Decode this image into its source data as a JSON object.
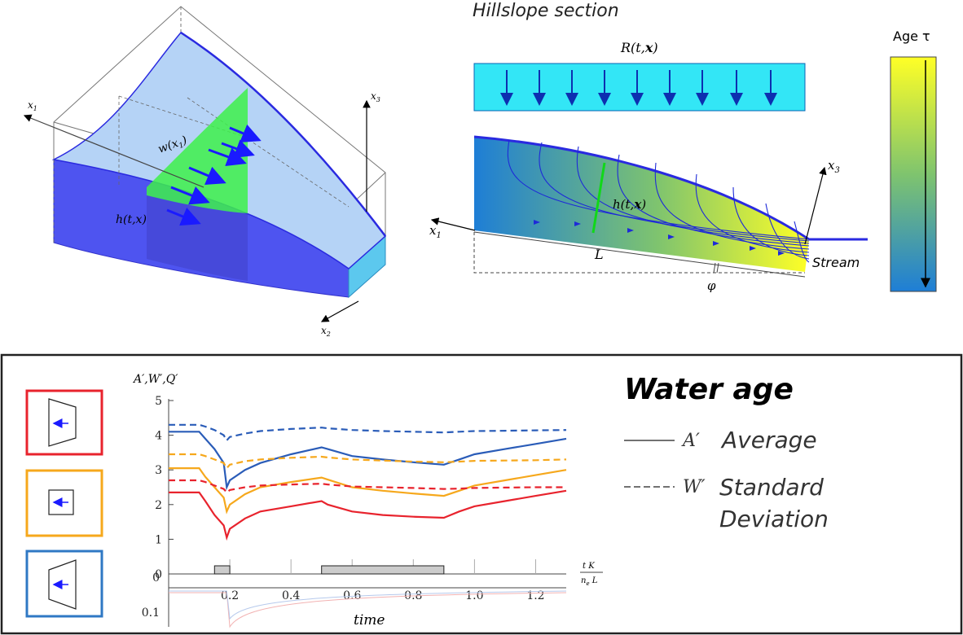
{
  "top": {
    "block3d": {
      "x1": "x",
      "x1_sub": "1",
      "x2": "x",
      "x2_sub": "2",
      "x3": "x",
      "x3_sub": "3",
      "w": "w(x",
      "w_sub": "1",
      "w_end": ")",
      "h": "h(t,x)"
    },
    "section": {
      "title": "Hillslope section",
      "recharge": "R(t,",
      "recharge_bold": "x",
      "recharge_end": ")",
      "h": "h(t,",
      "h_bold": "x",
      "h_end": ")",
      "x1": "x",
      "x1_sub": "1",
      "x3": "x",
      "x3_sub": "3",
      "L": "L",
      "phi": "φ",
      "stream": "Stream"
    },
    "colorbar": {
      "title": "Age τ",
      "top_color": "#ffff26",
      "mid_color": "#7fc46e",
      "bottom_color": "#1e7ed6"
    }
  },
  "bottom": {
    "title": "Water age",
    "ylabel": "A′,W′,Q′",
    "xlabel": "time",
    "x_scale_num": "t K",
    "x_scale_den": "n",
    "x_scale_den_sub": "e",
    "x_scale_den_end": " L",
    "legend": [
      {
        "symbol": "A′",
        "text": "Average",
        "style": "solid"
      },
      {
        "symbol": "W′",
        "text": "Standard",
        "text2": "Deviation",
        "style": "dashed"
      }
    ],
    "shape_boxes": [
      {
        "shape": "convergent",
        "color": "#e8232d"
      },
      {
        "shape": "uniform",
        "color": "#f6a81c"
      },
      {
        "shape": "divergent",
        "color": "#2f78c4"
      }
    ]
  },
  "chart_data": {
    "type": "line",
    "xlabel": "time",
    "ylabel": "A′,W′,Q′",
    "xlim": [
      0,
      1.3
    ],
    "ylim": [
      0,
      5
    ],
    "x_ticks": [
      "0.2",
      "0.4",
      "0.6",
      "0.8",
      "1.0",
      "1.2"
    ],
    "y_ticks": [
      "0",
      "1",
      "2",
      "3",
      "4",
      "5"
    ],
    "flux_tick_labels": [
      "0",
      "0.1"
    ],
    "x": [
      0.0,
      0.1,
      0.12,
      0.15,
      0.18,
      0.19,
      0.2,
      0.25,
      0.3,
      0.4,
      0.5,
      0.52,
      0.6,
      0.7,
      0.8,
      0.9,
      0.95,
      1.0,
      1.1,
      1.2,
      1.3
    ],
    "series": [
      {
        "color": "#2a5cb8",
        "style": "solid",
        "values": [
          4.1,
          4.1,
          3.9,
          3.6,
          3.2,
          2.5,
          2.7,
          3.0,
          3.2,
          3.45,
          3.65,
          3.6,
          3.4,
          3.3,
          3.22,
          3.15,
          3.3,
          3.45,
          3.6,
          3.75,
          3.9
        ]
      },
      {
        "color": "#f6a81c",
        "style": "solid",
        "values": [
          3.05,
          3.05,
          2.8,
          2.5,
          2.2,
          1.8,
          2.0,
          2.3,
          2.5,
          2.65,
          2.78,
          2.72,
          2.5,
          2.4,
          2.32,
          2.25,
          2.4,
          2.55,
          2.7,
          2.85,
          3.0
        ]
      },
      {
        "color": "#e8232d",
        "style": "solid",
        "values": [
          2.35,
          2.35,
          2.1,
          1.7,
          1.4,
          1.05,
          1.3,
          1.6,
          1.8,
          1.95,
          2.1,
          2.0,
          1.8,
          1.7,
          1.65,
          1.62,
          1.8,
          1.95,
          2.1,
          2.25,
          2.4
        ]
      },
      {
        "color": "#2a5cb8",
        "style": "dashed",
        "values": [
          4.3,
          4.3,
          4.25,
          4.15,
          4.0,
          3.85,
          3.95,
          4.05,
          4.12,
          4.18,
          4.22,
          4.2,
          4.15,
          4.12,
          4.1,
          4.08,
          4.1,
          4.12,
          4.13,
          4.14,
          4.15
        ]
      },
      {
        "color": "#f6a81c",
        "style": "dashed",
        "values": [
          3.45,
          3.45,
          3.4,
          3.3,
          3.2,
          3.05,
          3.15,
          3.25,
          3.3,
          3.35,
          3.38,
          3.36,
          3.3,
          3.27,
          3.24,
          3.22,
          3.24,
          3.26,
          3.27,
          3.28,
          3.3
        ]
      },
      {
        "color": "#e8232d",
        "style": "dashed",
        "values": [
          2.7,
          2.7,
          2.65,
          2.55,
          2.45,
          2.35,
          2.42,
          2.5,
          2.55,
          2.58,
          2.6,
          2.58,
          2.52,
          2.5,
          2.48,
          2.45,
          2.46,
          2.48,
          2.49,
          2.5,
          2.5
        ]
      }
    ],
    "forcing_steps": [
      {
        "x0": 0.15,
        "x1": 0.2
      },
      {
        "x0": 0.5,
        "x1": 0.9
      }
    ]
  }
}
